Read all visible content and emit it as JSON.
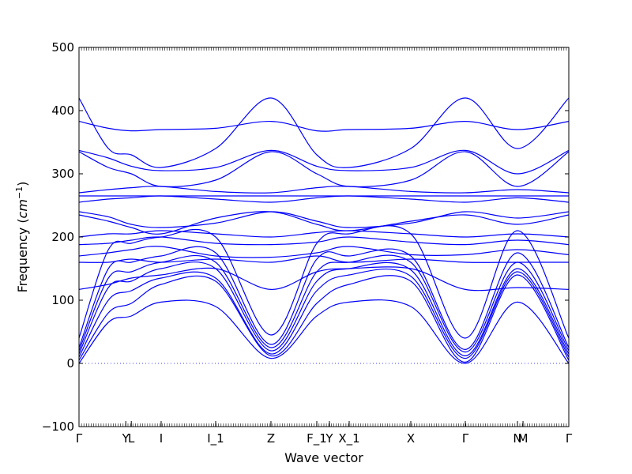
{
  "chart_data": {
    "type": "line",
    "title": "",
    "xlabel": "Wave vector",
    "ylabel": "Frequency",
    "ylabel_unit": "cm",
    "ylabel_unit_exp": "−1",
    "ylim": [
      -100,
      500
    ],
    "yticks": [
      -100,
      0,
      100,
      200,
      300,
      400,
      500
    ],
    "line_color": "#0000ff",
    "zero_line_color": "#0000ff",
    "high_symmetry_points": [
      {
        "label": "Γ",
        "x": 0.0
      },
      {
        "label": "Y",
        "x": 0.0955
      },
      {
        "label": "L",
        "x": 0.1068
      },
      {
        "label": "I",
        "x": 0.1677
      },
      {
        "label": "I_1",
        "x": 0.279
      },
      {
        "label": "Z",
        "x": 0.3919
      },
      {
        "label": "F_1",
        "x": 0.4855
      },
      {
        "label": "Y",
        "x": 0.5113
      },
      {
        "label": "X_1",
        "x": 0.5516
      },
      {
        "label": "X",
        "x": 0.6774
      },
      {
        "label": "Γ",
        "x": 0.7887
      },
      {
        "label": "N",
        "x": 0.8952
      },
      {
        "label": "M",
        "x": 0.9065
      },
      {
        "label": "Γ",
        "x": 1.0
      }
    ],
    "series": [
      {
        "x": [
          0,
          0.06,
          0.1068,
          0.1677,
          0.279,
          0.3919,
          0.4855,
          0.5516,
          0.6774,
          0.7887,
          0.8952,
          1.0
        ],
        "values": [
          0,
          65,
          75,
          97,
          90,
          8,
          75,
          97,
          90,
          0,
          97,
          0
        ]
      },
      {
        "x": [
          0,
          0.06,
          0.1068,
          0.1677,
          0.279,
          0.3919,
          0.4855,
          0.5516,
          0.6774,
          0.7887,
          0.8952,
          1.0
        ],
        "values": [
          5,
          80,
          95,
          125,
          130,
          12,
          95,
          125,
          130,
          2,
          140,
          5
        ]
      },
      {
        "x": [
          0,
          0.06,
          0.1068,
          0.1677,
          0.279,
          0.3919,
          0.4855,
          0.5516,
          0.6774,
          0.7887,
          0.8952,
          1.0
        ],
        "values": [
          10,
          100,
          115,
          135,
          135,
          15,
          115,
          140,
          138,
          8,
          145,
          10
        ]
      },
      {
        "x": [
          0,
          0.06,
          0.1068,
          0.1677,
          0.279,
          0.3919,
          0.4855,
          0.5516,
          0.6774,
          0.7887,
          0.8952,
          1.0
        ],
        "values": [
          15,
          120,
          130,
          150,
          150,
          20,
          130,
          150,
          148,
          12,
          150,
          15
        ]
      },
      {
        "x": [
          0,
          0.06,
          0.1068,
          0.1677,
          0.279,
          0.3919,
          0.4855,
          0.5516,
          0.6774,
          0.7887,
          0.8952,
          1.0
        ],
        "values": [
          20,
          135,
          145,
          160,
          160,
          25,
          145,
          160,
          160,
          18,
          160,
          20
        ]
      },
      {
        "x": [
          0,
          0.06,
          0.1068,
          0.1677,
          0.279,
          0.3919,
          0.4855,
          0.5516,
          0.6774,
          0.7887,
          0.8952,
          1.0
        ],
        "values": [
          25,
          150,
          160,
          170,
          175,
          30,
          165,
          170,
          170,
          22,
          175,
          25
        ]
      },
      {
        "x": [
          0,
          0.06,
          0.1068,
          0.1677,
          0.279,
          0.3919,
          0.4855,
          0.5516,
          0.6774,
          0.7887,
          0.8952,
          1.0
        ],
        "values": [
          40,
          180,
          190,
          200,
          200,
          45,
          190,
          205,
          205,
          40,
          210,
          40
        ]
      },
      {
        "x": [
          0,
          0.06,
          0.1068,
          0.1677,
          0.279,
          0.3919,
          0.4855,
          0.5516,
          0.6774,
          0.7887,
          0.8952,
          1.0
        ],
        "values": [
          117,
          125,
          135,
          140,
          150,
          117,
          145,
          150,
          150,
          117,
          120,
          117
        ]
      },
      {
        "x": [
          0,
          0.06,
          0.1068,
          0.1677,
          0.279,
          0.3919,
          0.4855,
          0.5516,
          0.6774,
          0.7887,
          0.8952,
          1.0
        ],
        "values": [
          160,
          160,
          165,
          160,
          165,
          160,
          170,
          160,
          165,
          160,
          160,
          160
        ]
      },
      {
        "x": [
          0,
          0.06,
          0.1068,
          0.1677,
          0.279,
          0.3919,
          0.4855,
          0.5516,
          0.6774,
          0.7887,
          0.8952,
          1.0
        ],
        "values": [
          170,
          175,
          180,
          185,
          170,
          168,
          175,
          185,
          172,
          172,
          180,
          172
        ]
      },
      {
        "x": [
          0,
          0.06,
          0.1068,
          0.1677,
          0.279,
          0.3919,
          0.4855,
          0.5516,
          0.6774,
          0.7887,
          0.8952,
          1.0
        ],
        "values": [
          188,
          190,
          195,
          200,
          190,
          188,
          192,
          200,
          192,
          188,
          195,
          188
        ]
      },
      {
        "x": [
          0,
          0.06,
          0.1068,
          0.1677,
          0.279,
          0.3919,
          0.4855,
          0.5516,
          0.6774,
          0.7887,
          0.8952,
          1.0
        ],
        "values": [
          200,
          205,
          205,
          210,
          205,
          200,
          207,
          210,
          205,
          200,
          205,
          200
        ]
      },
      {
        "x": [
          0,
          0.06,
          0.1068,
          0.1677,
          0.279,
          0.3919,
          0.4855,
          0.5516,
          0.6774,
          0.7887,
          0.8952,
          1.0
        ],
        "values": [
          235,
          225,
          215,
          205,
          230,
          240,
          220,
          210,
          225,
          235,
          220,
          235
        ]
      },
      {
        "x": [
          0,
          0.06,
          0.1068,
          0.1677,
          0.279,
          0.3919,
          0.4855,
          0.5516,
          0.6774,
          0.7887,
          0.8952,
          1.0
        ],
        "values": [
          240,
          232,
          220,
          215,
          222,
          240,
          225,
          215,
          222,
          240,
          230,
          240
        ]
      },
      {
        "x": [
          0,
          0.06,
          0.1068,
          0.1677,
          0.279,
          0.3919,
          0.4855,
          0.5516,
          0.6774,
          0.7887,
          0.8952,
          1.0
        ],
        "values": [
          255,
          260,
          262,
          265,
          260,
          255,
          262,
          265,
          260,
          255,
          262,
          255
        ]
      },
      {
        "x": [
          0,
          0.06,
          0.1068,
          0.1677,
          0.279,
          0.3919,
          0.4855,
          0.5516,
          0.6774,
          0.7887,
          0.8952,
          1.0
        ],
        "values": [
          265,
          265,
          265,
          265,
          265,
          265,
          265,
          265,
          265,
          265,
          265,
          265
        ]
      },
      {
        "x": [
          0,
          0.06,
          0.1068,
          0.1677,
          0.279,
          0.3919,
          0.4855,
          0.5516,
          0.6774,
          0.7887,
          0.8952,
          1.0
        ],
        "values": [
          270,
          275,
          278,
          280,
          272,
          270,
          278,
          280,
          272,
          270,
          275,
          270
        ]
      },
      {
        "x": [
          0,
          0.06,
          0.1068,
          0.1677,
          0.279,
          0.3919,
          0.4855,
          0.5516,
          0.6774,
          0.7887,
          0.8952,
          1.0
        ],
        "values": [
          335,
          310,
          300,
          280,
          290,
          335,
          300,
          280,
          290,
          335,
          280,
          335
        ]
      },
      {
        "x": [
          0,
          0.06,
          0.1068,
          0.1677,
          0.279,
          0.3919,
          0.4855,
          0.5516,
          0.6774,
          0.7887,
          0.8952,
          1.0
        ],
        "values": [
          337,
          325,
          312,
          305,
          310,
          337,
          312,
          305,
          310,
          337,
          300,
          337
        ]
      },
      {
        "x": [
          0,
          0.06,
          0.1068,
          0.1677,
          0.279,
          0.3919,
          0.4855,
          0.5516,
          0.6774,
          0.7887,
          0.8952,
          1.0
        ],
        "values": [
          383,
          372,
          368,
          370,
          372,
          383,
          368,
          370,
          372,
          383,
          370,
          383
        ]
      },
      {
        "x": [
          0,
          0.06,
          0.1068,
          0.1677,
          0.279,
          0.3919,
          0.4855,
          0.5516,
          0.6774,
          0.7887,
          0.8952,
          1.0
        ],
        "values": [
          420,
          340,
          330,
          310,
          340,
          420,
          330,
          310,
          340,
          420,
          340,
          420
        ]
      }
    ]
  }
}
